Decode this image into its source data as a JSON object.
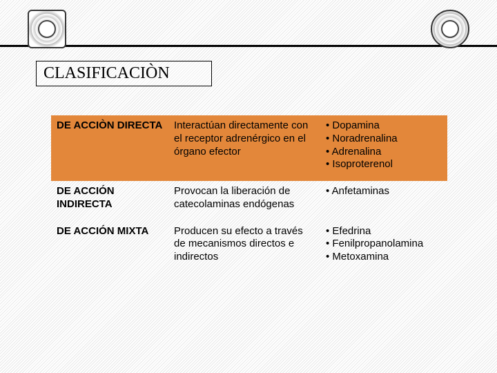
{
  "colors": {
    "highlight_bg": "#e3873a",
    "text": "#000000",
    "header_line": "#000000"
  },
  "title": "CLASIFICACIÒN",
  "table": {
    "rows": [
      {
        "highlight": true,
        "label": "DE ACCIÒN DIRECTA",
        "description": "Interactúan directamente con el receptor adrenérgico en el órgano efector",
        "examples": [
          "Dopamina",
          " Noradrenalina",
          " Adrenalina",
          " Isoproterenol"
        ]
      },
      {
        "highlight": false,
        "label": "DE ACCIÓN INDIRECTA",
        "description": "Provocan la liberación de catecolaminas endógenas",
        "examples": [
          "Anfetaminas"
        ]
      },
      {
        "highlight": false,
        "label": "DE ACCIÓN MIXTA",
        "description": "Producen su efecto a través de mecanismos directos e indirectos",
        "examples": [
          " Efedrina",
          " Fenilpropanolamina",
          "  Metoxamina"
        ]
      }
    ]
  }
}
